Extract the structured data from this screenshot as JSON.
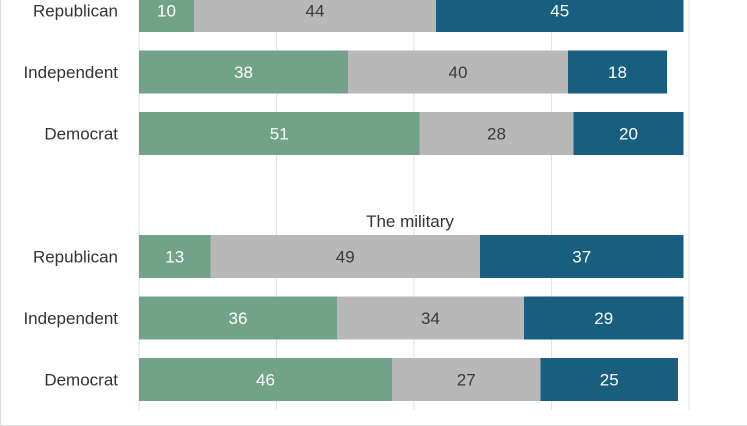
{
  "chart_data": [
    {
      "type": "bar",
      "orientation": "horizontal",
      "stacked": true,
      "title": "",
      "categories": [
        "Republican",
        "Independent",
        "Democrat"
      ],
      "series": [
        {
          "values": [
            10,
            38,
            51
          ],
          "color": "#72a388"
        },
        {
          "values": [
            44,
            40,
            28
          ],
          "color": "#b8b8b8"
        },
        {
          "values": [
            45,
            18,
            20
          ],
          "color": "#175e7f"
        }
      ],
      "xlim": [
        0,
        100
      ],
      "grid": true,
      "legend": "none"
    },
    {
      "type": "bar",
      "orientation": "horizontal",
      "stacked": true,
      "title": "The military",
      "categories": [
        "Republican",
        "Independent",
        "Democrat"
      ],
      "series": [
        {
          "values": [
            13,
            36,
            46
          ],
          "color": "#72a388"
        },
        {
          "values": [
            49,
            34,
            27
          ],
          "color": "#b8b8b8"
        },
        {
          "values": [
            37,
            29,
            25
          ],
          "color": "#175e7f"
        }
      ],
      "xlim": [
        0,
        100
      ],
      "grid": true,
      "legend": "none"
    }
  ]
}
